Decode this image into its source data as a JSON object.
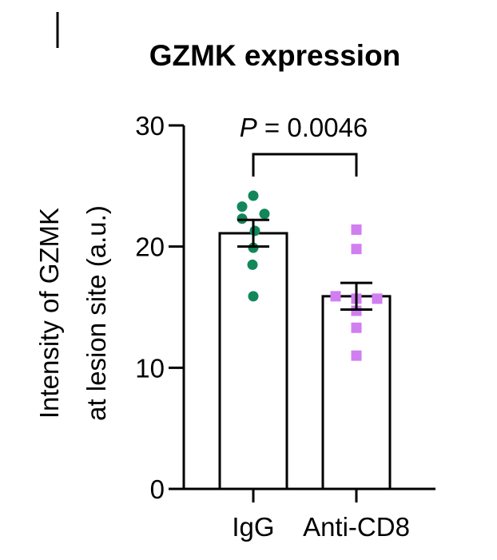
{
  "chart_data": {
    "type": "bar",
    "title": "GZMK expression",
    "ylabel_line1": "Intensity of GZMK",
    "ylabel_line2": "at lesion site (a.u.)",
    "xlabel": "",
    "ylim": [
      0,
      30
    ],
    "yticks": [
      "0",
      "10",
      "20",
      "30"
    ],
    "categories": [
      "IgG",
      "Anti-CD8"
    ],
    "values": [
      21.1,
      15.9
    ],
    "sem": [
      1.1,
      1.1
    ],
    "points": [
      [
        24.2,
        23.3,
        22.7,
        22.3,
        21.3,
        19.9,
        18.5,
        15.9
      ],
      [
        21.4,
        19.8,
        15.9,
        15.7,
        15.7,
        14.7,
        13.3,
        11.0
      ]
    ],
    "point_colors": [
      "#11875a",
      "#d17ef0"
    ],
    "point_shapes": [
      "circle",
      "square"
    ],
    "significance": {
      "label_italic": "P",
      "label_rest": " = 0.0046",
      "between": [
        0,
        1
      ]
    }
  }
}
